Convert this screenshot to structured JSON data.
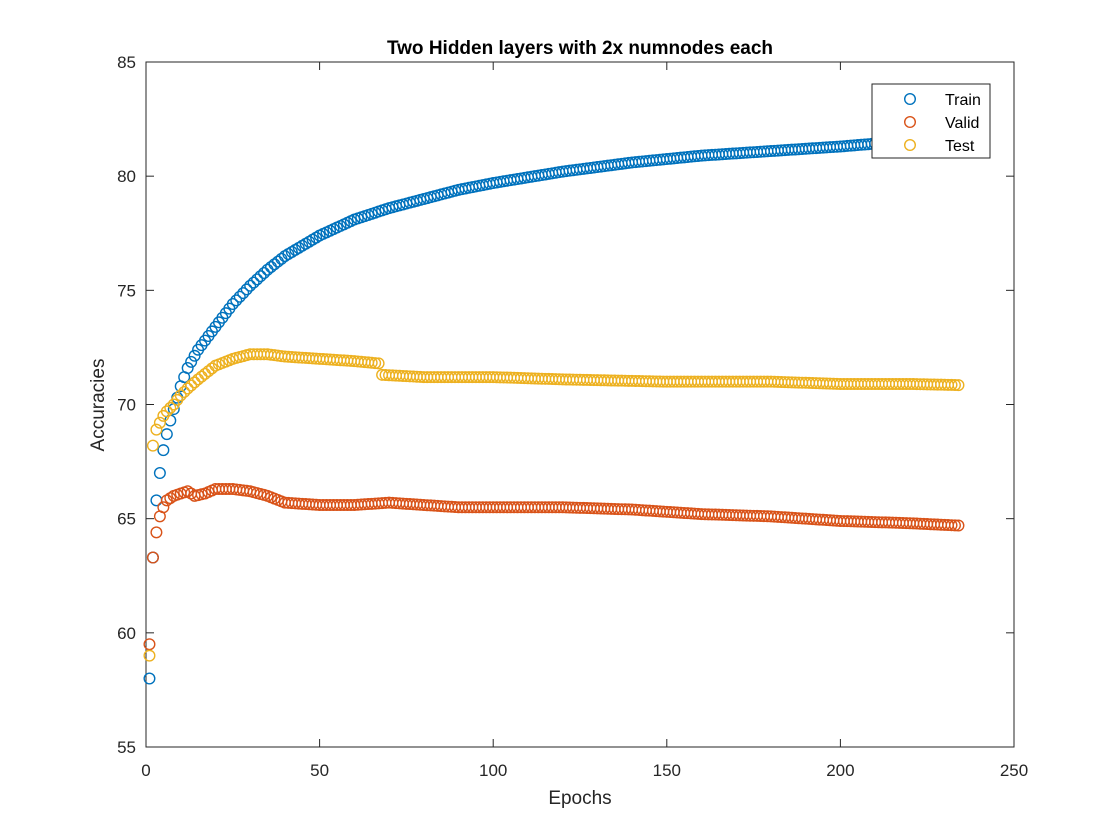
{
  "chart_data": {
    "type": "scatter",
    "title": "Two Hidden layers with 2x numnodes each",
    "xlabel": "Epochs",
    "ylabel": "Accuracies",
    "xlim": [
      0,
      250
    ],
    "ylim": [
      55,
      85
    ],
    "xticks": [
      0,
      50,
      100,
      150,
      200,
      250
    ],
    "yticks": [
      55,
      60,
      65,
      70,
      75,
      80,
      85
    ],
    "grid": false,
    "legend_position": "top-right",
    "marker": "open-circle",
    "series": [
      {
        "name": "Train",
        "color": "#0072BD",
        "anchors": [
          [
            1,
            58.0
          ],
          [
            2,
            63.3
          ],
          [
            3,
            65.8
          ],
          [
            4,
            67.0
          ],
          [
            5,
            68.0
          ],
          [
            6,
            68.7
          ],
          [
            7,
            69.3
          ],
          [
            8,
            69.8
          ],
          [
            9,
            70.3
          ],
          [
            10,
            70.8
          ],
          [
            12,
            71.6
          ],
          [
            15,
            72.4
          ],
          [
            20,
            73.4
          ],
          [
            25,
            74.4
          ],
          [
            30,
            75.2
          ],
          [
            35,
            75.9
          ],
          [
            40,
            76.5
          ],
          [
            50,
            77.4
          ],
          [
            60,
            78.1
          ],
          [
            70,
            78.6
          ],
          [
            80,
            79.0
          ],
          [
            90,
            79.4
          ],
          [
            100,
            79.7
          ],
          [
            120,
            80.2
          ],
          [
            140,
            80.6
          ],
          [
            160,
            80.9
          ],
          [
            180,
            81.1
          ],
          [
            200,
            81.3
          ],
          [
            212,
            81.45
          ]
        ],
        "x_start": 1,
        "x_end": 212
      },
      {
        "name": "Valid",
        "color": "#D95319",
        "anchors": [
          [
            1,
            59.5
          ],
          [
            2,
            63.3
          ],
          [
            3,
            64.4
          ],
          [
            4,
            65.1
          ],
          [
            5,
            65.5
          ],
          [
            6,
            65.8
          ],
          [
            8,
            66.0
          ],
          [
            10,
            66.1
          ],
          [
            12,
            66.2
          ],
          [
            14,
            66.0
          ],
          [
            17,
            66.1
          ],
          [
            20,
            66.3
          ],
          [
            25,
            66.3
          ],
          [
            30,
            66.2
          ],
          [
            35,
            66.0
          ],
          [
            40,
            65.7
          ],
          [
            50,
            65.6
          ],
          [
            60,
            65.6
          ],
          [
            70,
            65.7
          ],
          [
            80,
            65.6
          ],
          [
            90,
            65.5
          ],
          [
            100,
            65.5
          ],
          [
            120,
            65.5
          ],
          [
            140,
            65.4
          ],
          [
            160,
            65.2
          ],
          [
            180,
            65.1
          ],
          [
            200,
            64.9
          ],
          [
            220,
            64.8
          ],
          [
            234,
            64.7
          ]
        ],
        "x_start": 1,
        "x_end": 234
      },
      {
        "name": "Test",
        "color": "#EDB120",
        "anchors": [
          [
            1,
            59.0
          ],
          [
            2,
            68.2
          ],
          [
            3,
            68.9
          ],
          [
            4,
            69.2
          ],
          [
            5,
            69.5
          ],
          [
            6,
            69.7
          ],
          [
            8,
            70.0
          ],
          [
            10,
            70.4
          ],
          [
            12,
            70.7
          ],
          [
            15,
            71.1
          ],
          [
            20,
            71.7
          ],
          [
            25,
            72.0
          ],
          [
            30,
            72.2
          ],
          [
            35,
            72.2
          ],
          [
            40,
            72.1
          ],
          [
            50,
            72.0
          ],
          [
            60,
            71.9
          ],
          [
            67,
            71.8
          ],
          [
            68,
            71.3
          ],
          [
            80,
            71.2
          ],
          [
            100,
            71.2
          ],
          [
            120,
            71.1
          ],
          [
            150,
            71.0
          ],
          [
            180,
            71.0
          ],
          [
            200,
            70.9
          ],
          [
            220,
            70.9
          ],
          [
            234,
            70.85
          ]
        ],
        "x_start": 1,
        "x_end": 234
      }
    ]
  }
}
